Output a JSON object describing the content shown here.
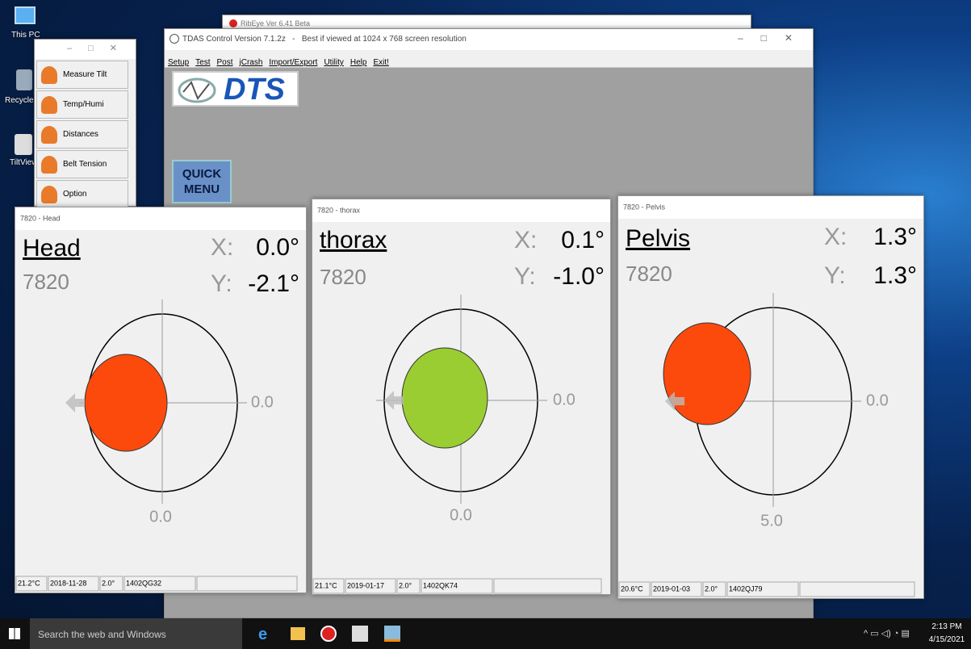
{
  "desktop_icons": [
    {
      "label": "This PC"
    },
    {
      "label": "Recycle B"
    },
    {
      "label": "TiltView"
    }
  ],
  "background_window": {
    "title": "RibEye Ver 6.41 Beta"
  },
  "main_window": {
    "title": "TDAS Control Version 7.1.2z   -   Best if viewed at 1024 x 768 screen resolution",
    "menu": [
      "Setup",
      "Test",
      "Post",
      "jCrash",
      "Import/Export",
      "Utility",
      "Help",
      "Exit!"
    ],
    "logo": "DTS",
    "quick_menu": "QUICK MENU"
  },
  "tool_window": {
    "items": [
      "Measure Tilt",
      "Temp/Humi",
      "Distances",
      "Belt Tension",
      "Option"
    ]
  },
  "tilt_windows": [
    {
      "title": "7820 - Head",
      "name": "Head",
      "id": "7820",
      "x_label": "X:",
      "x_value": "0.0°",
      "y_label": "Y:",
      "y_value": "-2.1°",
      "right_label": "0.0",
      "bottom_label": "0.0",
      "dot_color": "#fc4a0c",
      "status": [
        "21.2°C",
        "2018-11-28",
        "2.0°",
        "1402QG32"
      ]
    },
    {
      "title": "7820 - thorax",
      "name": "thorax",
      "id": "7820",
      "x_label": "X:",
      "x_value": "0.1°",
      "y_label": "Y:",
      "y_value": "-1.0°",
      "right_label": "0.0",
      "bottom_label": "0.0",
      "dot_color": "#9acd32",
      "status": [
        "21.1°C",
        "2019-01-17",
        "2.0°",
        "1402QK74"
      ]
    },
    {
      "title": "7820 - Pelvis",
      "name": "Pelvis",
      "id": "7820",
      "x_label": "X:",
      "x_value": "1.3°",
      "y_label": "Y:",
      "y_value": "1.3°",
      "right_label": "0.0",
      "bottom_label": "5.0",
      "dot_color": "#fc4a0c",
      "status": [
        "20.6°C",
        "2019-01-03",
        "2.0°",
        "1402QJ79"
      ]
    }
  ],
  "taskbar": {
    "search": "Search the web and Windows",
    "time": "2:13 PM",
    "date": "4/15/2021"
  }
}
